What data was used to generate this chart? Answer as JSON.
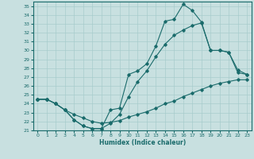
{
  "xlabel": "Humidex (Indice chaleur)",
  "xlim": [
    -0.5,
    23.5
  ],
  "ylim": [
    21,
    35.5
  ],
  "background_color": "#c8e0e0",
  "grid_color": "#a8cccc",
  "line_color": "#1a6b6b",
  "xticks": [
    0,
    1,
    2,
    3,
    4,
    5,
    6,
    7,
    8,
    9,
    10,
    11,
    12,
    13,
    14,
    15,
    16,
    17,
    18,
    19,
    20,
    21,
    22,
    23
  ],
  "yticks": [
    21,
    22,
    23,
    24,
    25,
    26,
    27,
    28,
    29,
    30,
    31,
    32,
    33,
    34,
    35
  ],
  "curve1_x": [
    0,
    1,
    2,
    3,
    4,
    5,
    6,
    7,
    8,
    9,
    10,
    11,
    12,
    13,
    14,
    15,
    16,
    17,
    18,
    19,
    20,
    21,
    22,
    23
  ],
  "curve1_y": [
    24.5,
    24.5,
    24.0,
    23.3,
    22.2,
    21.5,
    21.2,
    21.2,
    23.3,
    23.5,
    27.3,
    27.7,
    28.5,
    30.5,
    33.3,
    33.5,
    35.2,
    34.5,
    33.2,
    30.0,
    30.0,
    29.8,
    27.5,
    27.3
  ],
  "curve2_x": [
    0,
    1,
    2,
    3,
    4,
    5,
    6,
    7,
    8,
    9,
    10,
    11,
    12,
    13,
    14,
    15,
    16,
    17,
    18,
    19,
    20,
    21,
    22,
    23
  ],
  "curve2_y": [
    24.5,
    24.5,
    24.0,
    23.3,
    22.8,
    22.4,
    22.0,
    21.8,
    21.9,
    22.1,
    22.5,
    22.8,
    23.1,
    23.5,
    24.0,
    24.3,
    24.8,
    25.2,
    25.6,
    26.0,
    26.3,
    26.5,
    26.7,
    26.7
  ],
  "curve3_x": [
    0,
    1,
    2,
    3,
    4,
    5,
    6,
    7,
    8,
    9,
    10,
    11,
    12,
    13,
    14,
    15,
    16,
    17,
    18,
    19,
    20,
    21,
    22,
    23
  ],
  "curve3_y": [
    24.5,
    24.5,
    24.0,
    23.3,
    22.2,
    21.5,
    21.2,
    21.2,
    21.8,
    22.8,
    24.8,
    26.5,
    27.7,
    29.3,
    30.7,
    31.7,
    32.3,
    32.8,
    33.1,
    30.0,
    30.0,
    29.8,
    27.8,
    27.3
  ]
}
